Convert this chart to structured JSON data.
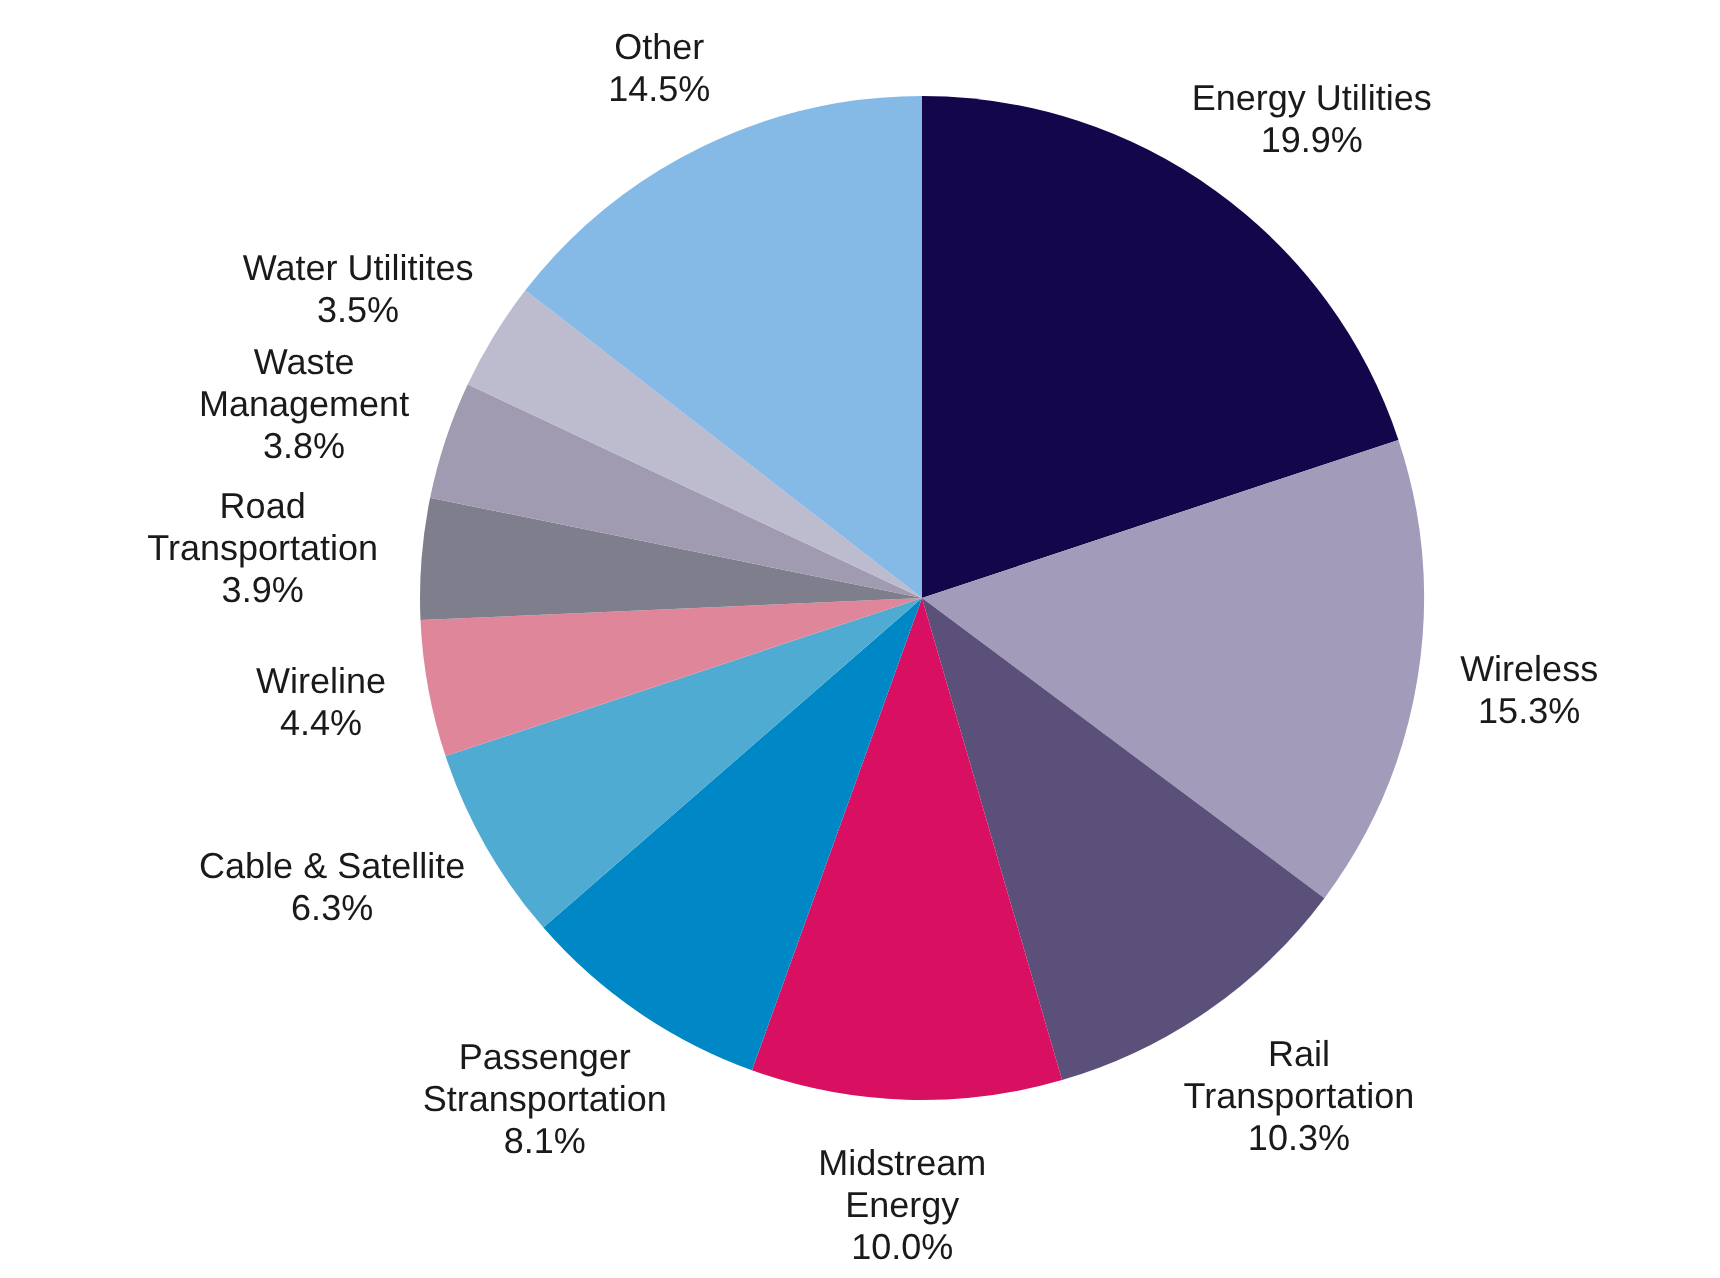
{
  "chart_data": {
    "type": "pie",
    "categories": [
      "Energy Utilities",
      "Wireless",
      "Rail Transportation",
      "Midstream Energy",
      "Passenger Stransportation",
      "Cable & Satellite",
      "Wireline",
      "Road Transportation",
      "Waste Management",
      "Water Utilitites",
      "Other"
    ],
    "values": [
      19.9,
      15.3,
      10.3,
      10.0,
      8.1,
      6.3,
      4.4,
      3.9,
      3.8,
      3.5,
      14.5
    ],
    "colors": [
      "#14064a",
      "#a29bba",
      "#5a507a",
      "#d90f62",
      "#0088c6",
      "#4fabd2",
      "#e0869a",
      "#7f7e8c",
      "#a09bb0",
      "#bdbbce",
      "#85b9e6"
    ],
    "value_labels": [
      "19.9%",
      "15.3%",
      "10.3%",
      "10.0%",
      "8.1%",
      "6.3%",
      "4.4%",
      "3.9%",
      "3.8%",
      "3.5%",
      "14.5%"
    ],
    "legend": false
  }
}
